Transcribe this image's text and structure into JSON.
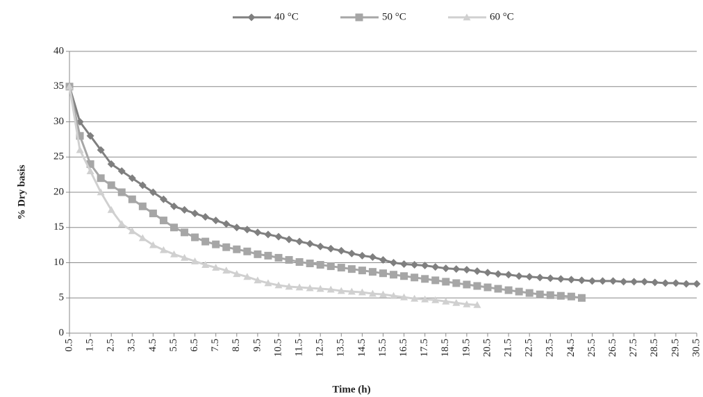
{
  "chart_data": {
    "type": "line",
    "xlabel": "Time (h)",
    "ylabel": "% Dry basis",
    "x": [
      0.5,
      1,
      1.5,
      2,
      2.5,
      3,
      3.5,
      4,
      4.5,
      5,
      5.5,
      6,
      6.5,
      7,
      7.5,
      8,
      8.5,
      9,
      9.5,
      10,
      10.5,
      11,
      11.5,
      12,
      12.5,
      13,
      13.5,
      14,
      14.5,
      15,
      15.5,
      16,
      16.5,
      17,
      17.5,
      18,
      18.5,
      19,
      19.5,
      20,
      20.5,
      21,
      21.5,
      22,
      22.5,
      23,
      23.5,
      24,
      24.5,
      25,
      25.5,
      26,
      26.5,
      27,
      27.5,
      28,
      28.5,
      29,
      29.5,
      30,
      30.5
    ],
    "series": [
      {
        "name": "40 °C",
        "color": "#7f7f7f",
        "marker": "diamond",
        "values": [
          35,
          30,
          28,
          26,
          24,
          23,
          22,
          21,
          20,
          19,
          18,
          17.5,
          17,
          16.5,
          16,
          15.5,
          15,
          14.7,
          14.3,
          14,
          13.7,
          13.3,
          13,
          12.7,
          12.3,
          12,
          11.7,
          11.3,
          11,
          10.8,
          10.4,
          10,
          9.8,
          9.7,
          9.6,
          9.4,
          9.2,
          9.1,
          9.0,
          8.8,
          8.6,
          8.4,
          8.3,
          8.1,
          8.0,
          7.9,
          7.8,
          7.7,
          7.6,
          7.5,
          7.4,
          7.4,
          7.4,
          7.3,
          7.3,
          7.3,
          7.2,
          7.1,
          7.1,
          7.0,
          7.0
        ]
      },
      {
        "name": "50 °C",
        "color": "#a6a6a6",
        "marker": "square",
        "values": [
          35,
          28,
          24,
          22,
          21,
          20,
          19,
          18,
          17,
          16,
          15,
          14.3,
          13.6,
          13,
          12.6,
          12.2,
          11.9,
          11.6,
          11.2,
          11,
          10.7,
          10.4,
          10.1,
          9.9,
          9.7,
          9.5,
          9.3,
          9.1,
          8.9,
          8.7,
          8.5,
          8.3,
          8.1,
          7.9,
          7.7,
          7.5,
          7.3,
          7.1,
          6.9,
          6.7,
          6.5,
          6.3,
          6.1,
          5.9,
          5.7,
          5.5,
          5.4,
          5.3,
          5.2,
          5.0,
          null,
          null,
          null,
          null,
          null,
          null,
          null,
          null,
          null,
          null,
          null
        ]
      },
      {
        "name": "60 °C",
        "color": "#d0d0d0",
        "marker": "triangle",
        "values": [
          35,
          26,
          23,
          20,
          17.5,
          15.5,
          14.5,
          13.5,
          12.5,
          11.8,
          11.2,
          10.7,
          10.2,
          9.7,
          9.3,
          8.9,
          8.4,
          8.0,
          7.5,
          7.1,
          6.8,
          6.6,
          6.5,
          6.4,
          6.3,
          6.2,
          6.0,
          5.9,
          5.8,
          5.6,
          5.5,
          5.3,
          5.1,
          4.9,
          4.8,
          4.7,
          4.5,
          4.3,
          4.1,
          4.0,
          null,
          null,
          null,
          null,
          null,
          null,
          null,
          null,
          null,
          null,
          null,
          null,
          null,
          null,
          null,
          null,
          null,
          null,
          null,
          null,
          null
        ]
      }
    ],
    "xlim": [
      0.5,
      30.5
    ],
    "xticks": [
      0.5,
      1.5,
      2.5,
      3.5,
      4.5,
      5.5,
      6.5,
      7.5,
      8.5,
      9.5,
      10.5,
      11.5,
      12.5,
      13.5,
      14.5,
      15.5,
      16.5,
      17.5,
      18.5,
      19.5,
      20.5,
      21.5,
      22.5,
      23.5,
      24.5,
      25.5,
      26.5,
      27.5,
      28.5,
      29.5,
      30.5
    ],
    "ylim": [
      0,
      40
    ],
    "yticks": [
      0,
      5,
      10,
      15,
      20,
      25,
      30,
      35,
      40
    ],
    "grid": true,
    "legend": "top"
  }
}
